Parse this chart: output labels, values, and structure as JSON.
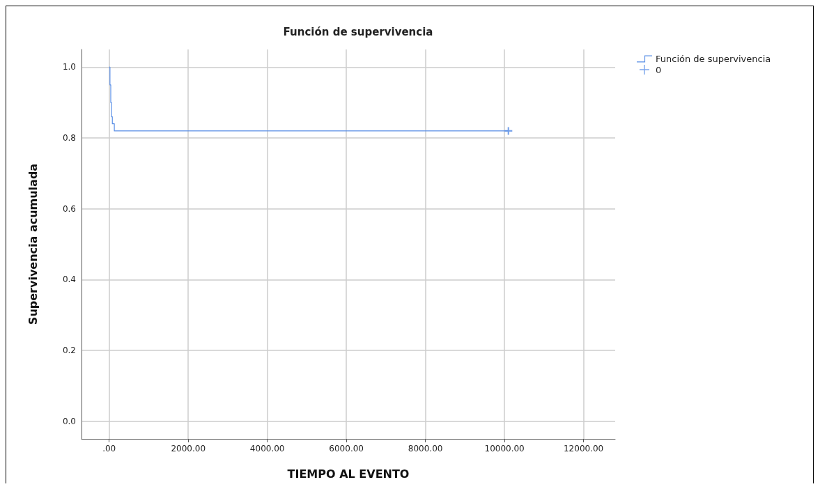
{
  "chart_data": {
    "type": "step",
    "title": "Función de supervivencia",
    "xlabel": "TIEMPO AL EVENTO",
    "ylabel": "Supervivencia acumulada",
    "series": [
      {
        "name": "Función de supervivencia",
        "color": "#5a8fe6",
        "marker": "none",
        "x": [
          0,
          20,
          40,
          60,
          80,
          130,
          10100
        ],
        "values": [
          1.0,
          0.95,
          0.9,
          0.86,
          0.84,
          0.82,
          0.82
        ]
      },
      {
        "name": "0",
        "type": "scatter",
        "color": "#5a8fe6",
        "marker": "cross",
        "x": [
          10100
        ],
        "values": [
          0.82
        ]
      }
    ],
    "xlim": [
      -700,
      12800
    ],
    "xticks": [
      {
        "value": 0,
        "label": ".00"
      },
      {
        "value": 2000,
        "label": "2000.00"
      },
      {
        "value": 4000,
        "label": "4000.00"
      },
      {
        "value": 6000,
        "label": "6000.00"
      },
      {
        "value": 8000,
        "label": "8000.00"
      },
      {
        "value": 10000,
        "label": "10000.00"
      },
      {
        "value": 12000,
        "label": "12000.00"
      }
    ],
    "ylim": [
      -0.05,
      1.05
    ],
    "yticks": [
      {
        "value": 0,
        "label": "0.0"
      },
      {
        "value": 0.2,
        "label": "0.2"
      },
      {
        "value": 0.4,
        "label": "0.4"
      },
      {
        "value": 0.6,
        "label": "0.6"
      },
      {
        "value": 0.8,
        "label": "0.8"
      },
      {
        "value": 1,
        "label": "1.0"
      }
    ],
    "grid": true,
    "legend": "top right"
  }
}
